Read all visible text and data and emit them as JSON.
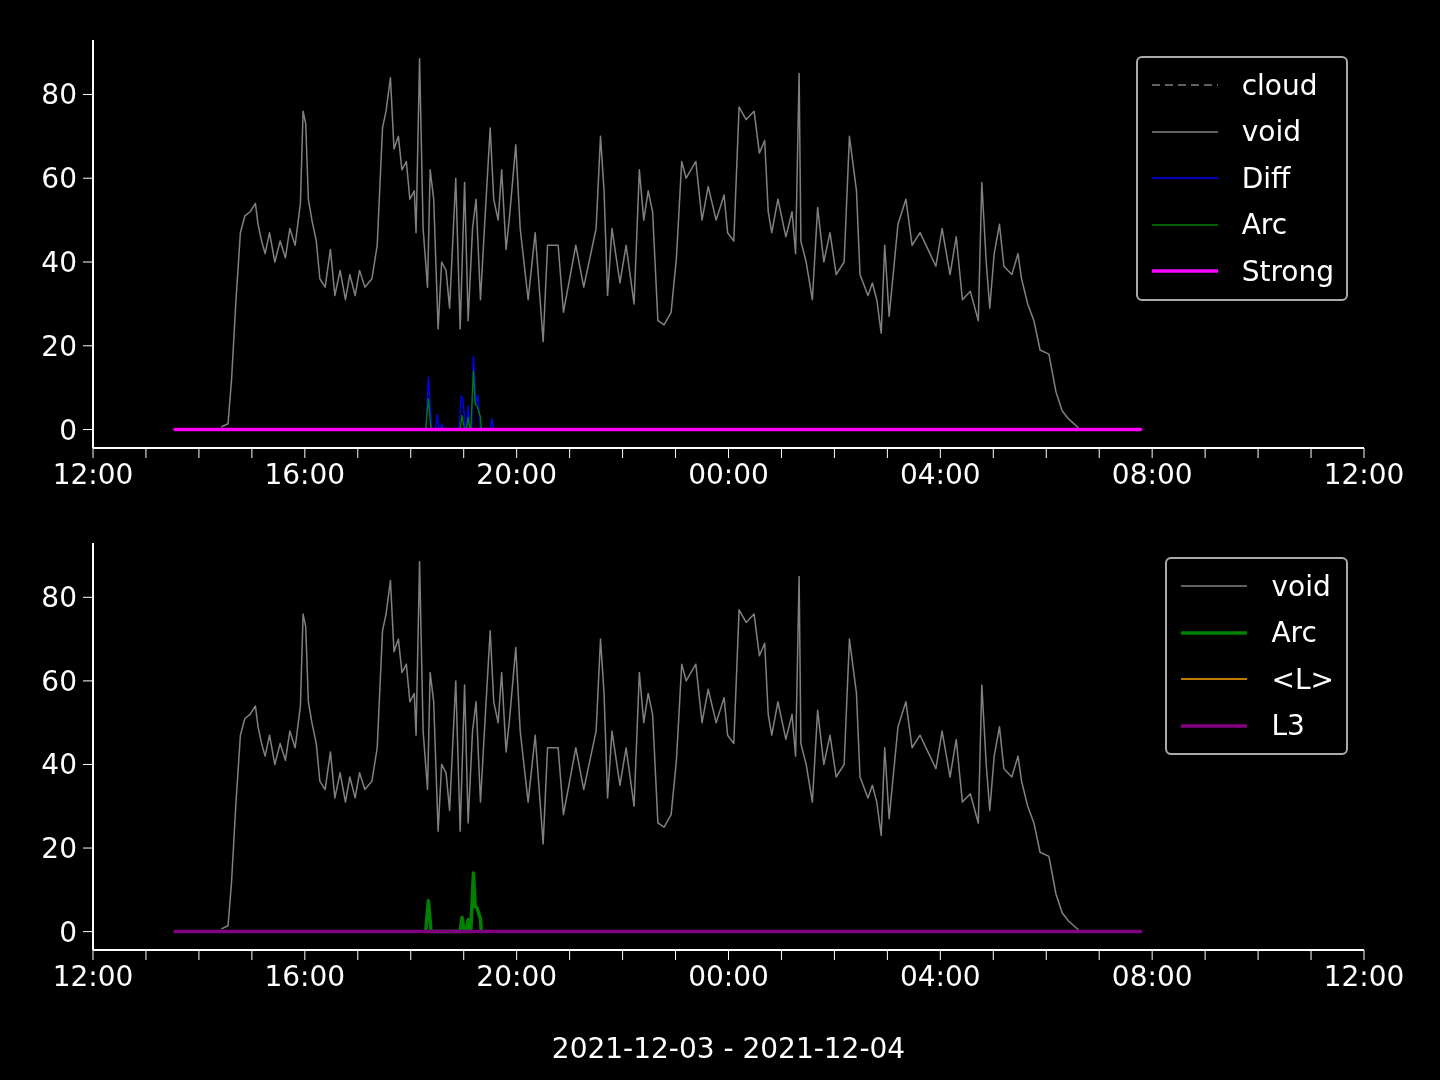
{
  "chart_data": [
    {
      "type": "line",
      "xlim": [
        "2021-12-03T12:00",
        "2021-12-04T12:00"
      ],
      "xticks": [
        {
          "value": "2021-12-03T12:00",
          "label": "12:00"
        },
        {
          "value": "2021-12-03T13:00",
          "label": null
        },
        {
          "value": "2021-12-03T14:00",
          "label": null
        },
        {
          "value": "2021-12-03T15:00",
          "label": null
        },
        {
          "value": "2021-12-03T16:00",
          "label": "16:00"
        },
        {
          "value": "2021-12-03T17:00",
          "label": null
        },
        {
          "value": "2021-12-03T18:00",
          "label": null
        },
        {
          "value": "2021-12-03T19:00",
          "label": null
        },
        {
          "value": "2021-12-03T20:00",
          "label": "20:00"
        },
        {
          "value": "2021-12-03T21:00",
          "label": null
        },
        {
          "value": "2021-12-03T22:00",
          "label": null
        },
        {
          "value": "2021-12-03T23:00",
          "label": null
        },
        {
          "value": "2021-12-04T00:00",
          "label": "00:00"
        },
        {
          "value": "2021-12-04T01:00",
          "label": null
        },
        {
          "value": "2021-12-04T02:00",
          "label": null
        },
        {
          "value": "2021-12-04T03:00",
          "label": null
        },
        {
          "value": "2021-12-04T04:00",
          "label": "04:00"
        },
        {
          "value": "2021-12-04T05:00",
          "label": null
        },
        {
          "value": "2021-12-04T06:00",
          "label": null
        },
        {
          "value": "2021-12-04T07:00",
          "label": null
        },
        {
          "value": "2021-12-04T08:00",
          "label": "08:00"
        },
        {
          "value": "2021-12-04T09:00",
          "label": null
        },
        {
          "value": "2021-12-04T10:00",
          "label": null
        },
        {
          "value": "2021-12-04T11:00",
          "label": null
        },
        {
          "value": "2021-12-04T12:00",
          "label": "12:00"
        }
      ],
      "ylim": [
        -4.4,
        93
      ],
      "yticks": [
        0,
        20,
        40,
        60,
        80
      ],
      "legend": "top right",
      "series": [
        {
          "name": "cloud",
          "color": "#808080",
          "line_style": "dashed"
        },
        {
          "name": "void",
          "color": "#808080",
          "x": [
            "2021-12-03T14:26",
            "2021-12-03T14:33",
            "2021-12-03T14:37",
            "2021-12-03T14:42",
            "2021-12-03T14:47",
            "2021-12-03T14:52",
            "2021-12-03T14:58",
            "2021-12-03T15:04",
            "2021-12-03T15:07",
            "2021-12-03T15:11",
            "2021-12-03T15:15",
            "2021-12-03T15:20",
            "2021-12-03T15:26",
            "2021-12-03T15:32",
            "2021-12-03T15:38",
            "2021-12-03T15:43",
            "2021-12-03T15:49",
            "2021-12-03T15:55",
            "2021-12-03T15:58",
            "2021-12-03T16:01",
            "2021-12-03T16:04",
            "2021-12-03T16:08",
            "2021-12-03T16:13",
            "2021-12-03T16:17",
            "2021-12-03T16:23",
            "2021-12-03T16:29",
            "2021-12-03T16:34",
            "2021-12-03T16:40",
            "2021-12-03T16:46",
            "2021-12-03T16:51",
            "2021-12-03T16:57",
            "2021-12-03T17:02",
            "2021-12-03T17:08",
            "2021-12-03T17:16",
            "2021-12-03T17:22",
            "2021-12-03T17:28",
            "2021-12-03T17:32",
            "2021-12-03T17:37",
            "2021-12-03T17:41",
            "2021-12-03T17:46",
            "2021-12-03T17:50",
            "2021-12-03T17:55",
            "2021-12-03T17:59",
            "2021-12-03T18:04",
            "2021-12-03T18:06",
            "2021-12-03T18:10",
            "2021-12-03T18:14",
            "2021-12-03T18:19",
            "2021-12-03T18:22",
            "2021-12-03T18:26",
            "2021-12-03T18:31",
            "2021-12-03T18:35",
            "2021-12-03T18:40",
            "2021-12-03T18:44",
            "2021-12-03T18:51",
            "2021-12-03T18:56",
            "2021-12-03T19:01",
            "2021-12-03T19:05",
            "2021-12-03T19:10",
            "2021-12-03T19:14",
            "2021-12-03T19:19",
            "2021-12-03T19:24",
            "2021-12-03T19:30",
            "2021-12-03T19:34",
            "2021-12-03T19:39",
            "2021-12-03T19:43",
            "2021-12-03T19:48",
            "2021-12-03T19:52",
            "2021-12-03T19:59",
            "2021-12-03T20:04",
            "2021-12-03T20:13",
            "2021-12-03T20:21",
            "2021-12-03T20:30",
            "2021-12-03T20:35",
            "2021-12-03T20:47",
            "2021-12-03T20:53",
            "2021-12-03T21:07",
            "2021-12-03T21:16",
            "2021-12-03T21:30",
            "2021-12-03T21:35",
            "2021-12-03T21:39",
            "2021-12-03T21:43",
            "2021-12-03T21:48",
            "2021-12-03T21:57",
            "2021-12-03T22:04",
            "2021-12-03T22:13",
            "2021-12-03T22:19",
            "2021-12-03T22:24",
            "2021-12-03T22:29",
            "2021-12-03T22:34",
            "2021-12-03T22:40",
            "2021-12-03T22:47",
            "2021-12-03T22:55",
            "2021-12-03T23:01",
            "2021-12-03T23:07",
            "2021-12-03T23:12",
            "2021-12-03T23:23",
            "2021-12-03T23:30",
            "2021-12-03T23:37",
            "2021-12-03T23:46",
            "2021-12-03T23:55",
            "2021-12-03T23:59",
            "2021-12-04T00:06",
            "2021-12-04T00:12",
            "2021-12-04T00:20",
            "2021-12-04T00:29",
            "2021-12-04T00:35",
            "2021-12-04T00:41",
            "2021-12-04T00:45",
            "2021-12-04T00:49",
            "2021-12-04T00:56",
            "2021-12-04T01:05",
            "2021-12-04T01:12",
            "2021-12-04T01:16",
            "2021-12-04T01:20",
            "2021-12-04T01:22",
            "2021-12-04T01:28",
            "2021-12-04T01:35",
            "2021-12-04T01:41",
            "2021-12-04T01:48",
            "2021-12-04T01:55",
            "2021-12-04T02:02",
            "2021-12-04T02:11",
            "2021-12-04T02:17",
            "2021-12-04T02:25",
            "2021-12-04T02:29",
            "2021-12-04T02:38",
            "2021-12-04T02:43",
            "2021-12-04T02:48",
            "2021-12-04T02:53",
            "2021-12-04T02:57",
            "2021-12-04T03:02",
            "2021-12-04T03:12",
            "2021-12-04T03:21",
            "2021-12-04T03:28",
            "2021-12-04T03:37",
            "2021-12-04T03:46",
            "2021-12-04T03:55",
            "2021-12-04T04:02",
            "2021-12-04T04:11",
            "2021-12-04T04:18",
            "2021-12-04T04:25",
            "2021-12-04T04:34",
            "2021-12-04T04:43",
            "2021-12-04T04:47",
            "2021-12-04T04:52",
            "2021-12-04T04:56",
            "2021-12-04T05:01",
            "2021-12-04T05:07",
            "2021-12-04T05:12",
            "2021-12-04T05:21",
            "2021-12-04T05:28",
            "2021-12-04T05:32",
            "2021-12-04T05:39",
            "2021-12-04T05:46",
            "2021-12-04T05:53",
            "2021-12-04T06:03",
            "2021-12-04T06:11",
            "2021-12-04T06:18",
            "2021-12-04T06:25",
            "2021-12-04T06:36"
          ],
          "values": [
            0.7,
            1.4,
            12,
            31,
            47,
            51,
            52,
            54,
            49,
            45,
            42,
            47,
            40,
            45,
            41,
            48,
            44,
            54,
            76,
            73,
            55,
            50,
            45,
            36,
            34,
            43,
            32,
            38,
            31,
            37,
            32,
            38,
            34,
            36,
            44,
            72,
            76,
            84,
            67,
            70,
            62,
            64,
            55,
            57,
            47,
            88.5,
            48,
            34,
            62,
            55,
            24,
            40,
            38,
            29,
            60,
            24,
            59,
            26,
            48,
            55,
            31,
            50,
            72,
            55,
            50,
            62,
            43,
            51,
            68,
            48,
            31,
            47,
            21,
            44,
            44,
            28,
            44,
            34,
            48,
            70,
            57,
            32,
            48,
            35,
            44,
            30,
            62,
            50,
            57,
            52,
            26,
            25,
            28,
            41,
            64,
            60,
            64,
            50,
            58,
            50,
            56,
            47,
            45,
            77,
            74,
            76,
            66,
            69,
            52,
            47,
            55,
            46,
            52,
            42,
            85,
            45,
            40,
            31,
            53,
            40,
            47,
            37,
            40,
            70,
            57,
            37,
            32,
            35,
            31,
            23,
            44,
            27,
            49,
            55,
            44,
            47,
            43,
            39,
            48,
            37,
            46,
            31,
            33,
            26,
            59,
            40,
            29,
            42,
            49,
            39,
            37,
            42,
            36,
            30,
            26,
            19,
            18,
            9,
            4.5,
            2.6,
            0.5
          ]
        },
        {
          "name": "Diff",
          "color": "#0000ff",
          "x": [
            "2021-12-03T18:17",
            "2021-12-03T18:20",
            "2021-12-03T18:24",
            "2021-12-03T18:28",
            "2021-12-03T18:30",
            "2021-12-03T18:32",
            "2021-12-03T18:34",
            "2021-12-03T18:35",
            "2021-12-03T18:37",
            "2021-12-03T18:55",
            "2021-12-03T18:57",
            "2021-12-03T18:59",
            "2021-12-03T19:02",
            "2021-12-03T19:03",
            "2021-12-03T19:05",
            "2021-12-03T19:07",
            "2021-12-03T19:09",
            "2021-12-03T19:11",
            "2021-12-03T19:14",
            "2021-12-03T19:16",
            "2021-12-03T19:19",
            "2021-12-03T19:30",
            "2021-12-03T19:32",
            "2021-12-03T19:34"
          ],
          "values": [
            0,
            12.5,
            0,
            0,
            3.5,
            0,
            0,
            1.4,
            0,
            0,
            8,
            7.4,
            0,
            0,
            5.7,
            0,
            0,
            17.4,
            6,
            8.3,
            0,
            0,
            2.6,
            0
          ]
        },
        {
          "name": "Arc",
          "color": "#008000",
          "x": [
            "2021-12-03T18:17",
            "2021-12-03T18:20",
            "2021-12-03T18:23",
            "2021-12-03T18:56",
            "2021-12-03T18:58",
            "2021-12-03T19:01",
            "2021-12-03T19:03",
            "2021-12-03T19:05",
            "2021-12-03T19:07",
            "2021-12-03T19:08",
            "2021-12-03T19:11",
            "2021-12-03T19:13",
            "2021-12-03T19:15",
            "2021-12-03T19:19",
            "2021-12-03T19:20"
          ],
          "values": [
            0,
            7.4,
            0,
            0,
            3.4,
            0,
            0,
            2.9,
            0,
            0,
            14,
            6,
            5.7,
            3,
            0
          ]
        },
        {
          "name": "Strong",
          "color": "#ff00ff",
          "x": [
            "2021-12-03T13:33",
            "2021-12-04T07:47"
          ],
          "values": [
            0,
            0
          ]
        }
      ]
    },
    {
      "type": "line",
      "xlabel": "2021-12-03 - 2021-12-04",
      "xlim": [
        "2021-12-03T12:00",
        "2021-12-04T12:00"
      ],
      "xticks": [
        {
          "value": "2021-12-03T12:00",
          "label": "12:00"
        },
        {
          "value": "2021-12-03T13:00",
          "label": null
        },
        {
          "value": "2021-12-03T14:00",
          "label": null
        },
        {
          "value": "2021-12-03T15:00",
          "label": null
        },
        {
          "value": "2021-12-03T16:00",
          "label": "16:00"
        },
        {
          "value": "2021-12-03T17:00",
          "label": null
        },
        {
          "value": "2021-12-03T18:00",
          "label": null
        },
        {
          "value": "2021-12-03T19:00",
          "label": null
        },
        {
          "value": "2021-12-03T20:00",
          "label": "20:00"
        },
        {
          "value": "2021-12-03T21:00",
          "label": null
        },
        {
          "value": "2021-12-03T22:00",
          "label": null
        },
        {
          "value": "2021-12-03T23:00",
          "label": null
        },
        {
          "value": "2021-12-04T00:00",
          "label": "00:00"
        },
        {
          "value": "2021-12-04T01:00",
          "label": null
        },
        {
          "value": "2021-12-04T02:00",
          "label": null
        },
        {
          "value": "2021-12-04T03:00",
          "label": null
        },
        {
          "value": "2021-12-04T04:00",
          "label": "04:00"
        },
        {
          "value": "2021-12-04T05:00",
          "label": null
        },
        {
          "value": "2021-12-04T06:00",
          "label": null
        },
        {
          "value": "2021-12-04T07:00",
          "label": null
        },
        {
          "value": "2021-12-04T08:00",
          "label": "08:00"
        },
        {
          "value": "2021-12-04T09:00",
          "label": null
        },
        {
          "value": "2021-12-04T10:00",
          "label": null
        },
        {
          "value": "2021-12-04T11:00",
          "label": null
        },
        {
          "value": "2021-12-04T12:00",
          "label": "12:00"
        }
      ],
      "ylim": [
        -4.4,
        93
      ],
      "yticks": [
        0,
        20,
        40,
        60,
        80
      ],
      "legend": "top right",
      "series": [
        {
          "name": "void",
          "color": "#808080",
          "x": [
            "2021-12-03T14:26",
            "2021-12-03T14:33",
            "2021-12-03T14:37",
            "2021-12-03T14:42",
            "2021-12-03T14:47",
            "2021-12-03T14:52",
            "2021-12-03T14:58",
            "2021-12-03T15:04",
            "2021-12-03T15:07",
            "2021-12-03T15:11",
            "2021-12-03T15:15",
            "2021-12-03T15:20",
            "2021-12-03T15:26",
            "2021-12-03T15:32",
            "2021-12-03T15:38",
            "2021-12-03T15:43",
            "2021-12-03T15:49",
            "2021-12-03T15:55",
            "2021-12-03T15:58",
            "2021-12-03T16:01",
            "2021-12-03T16:04",
            "2021-12-03T16:08",
            "2021-12-03T16:13",
            "2021-12-03T16:17",
            "2021-12-03T16:23",
            "2021-12-03T16:29",
            "2021-12-03T16:34",
            "2021-12-03T16:40",
            "2021-12-03T16:46",
            "2021-12-03T16:51",
            "2021-12-03T16:57",
            "2021-12-03T17:02",
            "2021-12-03T17:08",
            "2021-12-03T17:16",
            "2021-12-03T17:22",
            "2021-12-03T17:28",
            "2021-12-03T17:32",
            "2021-12-03T17:37",
            "2021-12-03T17:41",
            "2021-12-03T17:46",
            "2021-12-03T17:50",
            "2021-12-03T17:55",
            "2021-12-03T17:59",
            "2021-12-03T18:04",
            "2021-12-03T18:06",
            "2021-12-03T18:10",
            "2021-12-03T18:14",
            "2021-12-03T18:19",
            "2021-12-03T18:22",
            "2021-12-03T18:26",
            "2021-12-03T18:31",
            "2021-12-03T18:35",
            "2021-12-03T18:40",
            "2021-12-03T18:44",
            "2021-12-03T18:51",
            "2021-12-03T18:56",
            "2021-12-03T19:01",
            "2021-12-03T19:05",
            "2021-12-03T19:10",
            "2021-12-03T19:14",
            "2021-12-03T19:19",
            "2021-12-03T19:24",
            "2021-12-03T19:30",
            "2021-12-03T19:34",
            "2021-12-03T19:39",
            "2021-12-03T19:43",
            "2021-12-03T19:48",
            "2021-12-03T19:52",
            "2021-12-03T19:59",
            "2021-12-03T20:04",
            "2021-12-03T20:13",
            "2021-12-03T20:21",
            "2021-12-03T20:30",
            "2021-12-03T20:35",
            "2021-12-03T20:47",
            "2021-12-03T20:53",
            "2021-12-03T21:07",
            "2021-12-03T21:16",
            "2021-12-03T21:30",
            "2021-12-03T21:35",
            "2021-12-03T21:39",
            "2021-12-03T21:43",
            "2021-12-03T21:48",
            "2021-12-03T21:57",
            "2021-12-03T22:04",
            "2021-12-03T22:13",
            "2021-12-03T22:19",
            "2021-12-03T22:24",
            "2021-12-03T22:29",
            "2021-12-03T22:34",
            "2021-12-03T22:40",
            "2021-12-03T22:47",
            "2021-12-03T22:55",
            "2021-12-03T23:01",
            "2021-12-03T23:07",
            "2021-12-03T23:12",
            "2021-12-03T23:23",
            "2021-12-03T23:30",
            "2021-12-03T23:37",
            "2021-12-03T23:46",
            "2021-12-03T23:55",
            "2021-12-03T23:59",
            "2021-12-04T00:06",
            "2021-12-04T00:12",
            "2021-12-04T00:20",
            "2021-12-04T00:29",
            "2021-12-04T00:35",
            "2021-12-04T00:41",
            "2021-12-04T00:45",
            "2021-12-04T00:49",
            "2021-12-04T00:56",
            "2021-12-04T01:05",
            "2021-12-04T01:12",
            "2021-12-04T01:16",
            "2021-12-04T01:20",
            "2021-12-04T01:22",
            "2021-12-04T01:28",
            "2021-12-04T01:35",
            "2021-12-04T01:41",
            "2021-12-04T01:48",
            "2021-12-04T01:55",
            "2021-12-04T02:02",
            "2021-12-04T02:11",
            "2021-12-04T02:17",
            "2021-12-04T02:25",
            "2021-12-04T02:29",
            "2021-12-04T02:38",
            "2021-12-04T02:43",
            "2021-12-04T02:48",
            "2021-12-04T02:53",
            "2021-12-04T02:57",
            "2021-12-04T03:02",
            "2021-12-04T03:12",
            "2021-12-04T03:21",
            "2021-12-04T03:28",
            "2021-12-04T03:37",
            "2021-12-04T03:46",
            "2021-12-04T03:55",
            "2021-12-04T04:02",
            "2021-12-04T04:11",
            "2021-12-04T04:18",
            "2021-12-04T04:25",
            "2021-12-04T04:34",
            "2021-12-04T04:43",
            "2021-12-04T04:47",
            "2021-12-04T04:52",
            "2021-12-04T04:56",
            "2021-12-04T05:01",
            "2021-12-04T05:07",
            "2021-12-04T05:12",
            "2021-12-04T05:21",
            "2021-12-04T05:28",
            "2021-12-04T05:32",
            "2021-12-04T05:39",
            "2021-12-04T05:46",
            "2021-12-04T05:53",
            "2021-12-04T06:03",
            "2021-12-04T06:11",
            "2021-12-04T06:18",
            "2021-12-04T06:25",
            "2021-12-04T06:36"
          ],
          "values": [
            0.7,
            1.4,
            12,
            31,
            47,
            51,
            52,
            54,
            49,
            45,
            42,
            47,
            40,
            45,
            41,
            48,
            44,
            54,
            76,
            73,
            55,
            50,
            45,
            36,
            34,
            43,
            32,
            38,
            31,
            37,
            32,
            38,
            34,
            36,
            44,
            72,
            76,
            84,
            67,
            70,
            62,
            64,
            55,
            57,
            47,
            88.5,
            48,
            34,
            62,
            55,
            24,
            40,
            38,
            29,
            60,
            24,
            59,
            26,
            48,
            55,
            31,
            50,
            72,
            55,
            50,
            62,
            43,
            51,
            68,
            48,
            31,
            47,
            21,
            44,
            44,
            28,
            44,
            34,
            48,
            70,
            57,
            32,
            48,
            35,
            44,
            30,
            62,
            50,
            57,
            52,
            26,
            25,
            28,
            41,
            64,
            60,
            64,
            50,
            58,
            50,
            56,
            47,
            45,
            77,
            74,
            76,
            66,
            69,
            52,
            47,
            55,
            46,
            52,
            42,
            85,
            45,
            40,
            31,
            53,
            40,
            47,
            37,
            40,
            70,
            57,
            37,
            32,
            35,
            31,
            23,
            44,
            27,
            49,
            55,
            44,
            47,
            43,
            39,
            48,
            37,
            46,
            31,
            33,
            26,
            59,
            40,
            29,
            42,
            49,
            39,
            37,
            42,
            36,
            30,
            26,
            19,
            18,
            9,
            4.5,
            2.6,
            0.5
          ]
        },
        {
          "name": "Arc",
          "color": "#008000",
          "x": [
            "2021-12-03T18:17",
            "2021-12-03T18:20",
            "2021-12-03T18:23",
            "2021-12-03T18:56",
            "2021-12-03T18:58",
            "2021-12-03T19:01",
            "2021-12-03T19:03",
            "2021-12-03T19:05",
            "2021-12-03T19:07",
            "2021-12-03T19:08",
            "2021-12-03T19:11",
            "2021-12-03T19:13",
            "2021-12-03T19:15",
            "2021-12-03T19:19",
            "2021-12-03T19:20"
          ],
          "values": [
            0,
            7.4,
            0,
            0,
            3.4,
            0,
            0,
            2.9,
            0,
            0,
            14,
            6,
            5.7,
            3,
            0
          ]
        },
        {
          "name": "<L>",
          "color": "#ffa500"
        },
        {
          "name": "L3",
          "color": "#800080",
          "x": [
            "2021-12-03T13:33",
            "2021-12-04T07:47"
          ],
          "values": [
            0,
            0
          ]
        }
      ]
    }
  ]
}
